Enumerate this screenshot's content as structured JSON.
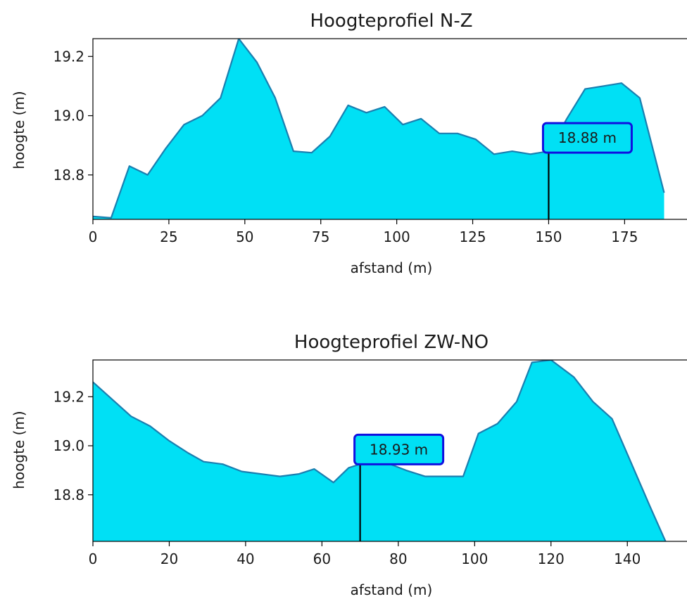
{
  "colors": {
    "fill": "#00e0f5",
    "line": "#1a7fb0",
    "box_edge": "#1010e0",
    "marker": "#000000"
  },
  "chart_data": [
    {
      "type": "area",
      "title": "Hoogteprofiel N-Z",
      "xlabel": "afstand (m)",
      "ylabel": "hoogte (m)",
      "xlim": [
        0,
        196
      ],
      "ylim": [
        18.65,
        19.26
      ],
      "xticks": [
        0,
        25,
        50,
        75,
        100,
        125,
        150,
        175
      ],
      "yticks": [
        18.8,
        19.0,
        19.2
      ],
      "yticklabels": [
        "18.8",
        "19.0",
        "19.2"
      ],
      "x": [
        0,
        6,
        12,
        18,
        24,
        30,
        36,
        42,
        48,
        54,
        60,
        66,
        72,
        78,
        84,
        90,
        96,
        102,
        108,
        114,
        120,
        126,
        132,
        138,
        144,
        150,
        156,
        162,
        168,
        174,
        180,
        188
      ],
      "y": [
        18.66,
        18.655,
        18.83,
        18.8,
        18.89,
        18.97,
        19.0,
        19.06,
        19.26,
        19.18,
        19.06,
        18.88,
        18.875,
        18.93,
        19.035,
        19.01,
        19.03,
        18.97,
        18.99,
        18.94,
        18.94,
        18.92,
        18.87,
        18.88,
        18.87,
        18.88,
        18.99,
        19.09,
        19.1,
        19.11,
        19.06,
        18.74
      ],
      "annotation": {
        "x": 150,
        "y": 18.88,
        "label": "18.88 m"
      }
    },
    {
      "type": "area",
      "title": "Hoogteprofiel ZW-NO",
      "xlabel": "afstand (m)",
      "ylabel": "hoogte (m)",
      "xlim": [
        0,
        156
      ],
      "ylim": [
        18.61,
        19.35
      ],
      "xticks": [
        0,
        20,
        40,
        60,
        80,
        100,
        120,
        140
      ],
      "yticks": [
        18.8,
        19.0,
        19.2
      ],
      "yticklabels": [
        "18.8",
        "19.0",
        "19.2"
      ],
      "x": [
        0,
        5,
        10,
        15,
        20,
        25,
        29,
        34,
        39,
        44,
        49,
        54,
        58,
        63,
        67,
        72,
        77,
        82,
        87,
        92,
        97,
        101,
        106,
        111,
        115,
        120,
        126,
        131,
        136,
        141,
        146,
        150
      ],
      "y": [
        19.26,
        19.19,
        19.12,
        19.08,
        19.02,
        18.97,
        18.935,
        18.925,
        18.895,
        18.885,
        18.875,
        18.885,
        18.905,
        18.85,
        18.91,
        18.935,
        18.93,
        18.9,
        18.875,
        18.875,
        18.875,
        19.05,
        19.09,
        19.18,
        19.34,
        19.35,
        19.28,
        19.18,
        19.11,
        18.93,
        18.75,
        18.61
      ],
      "annotation": {
        "x": 70,
        "y": 18.93,
        "label": "18.93 m"
      }
    }
  ]
}
